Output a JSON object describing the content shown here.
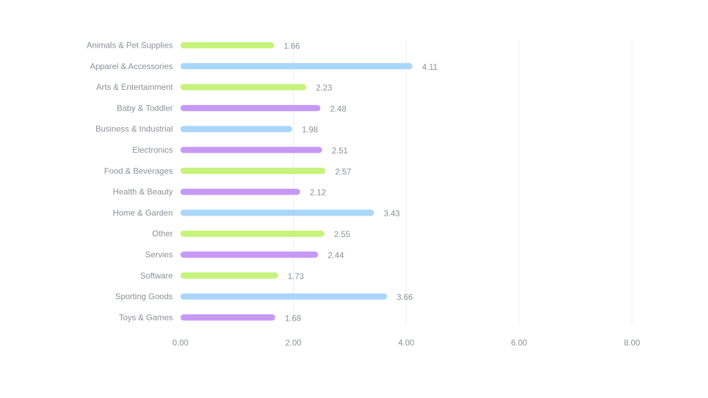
{
  "chart_data": {
    "type": "bar",
    "orientation": "horizontal",
    "title": "",
    "xlabel": "",
    "ylabel": "",
    "xlim": [
      0,
      8
    ],
    "grid": true,
    "legend": "none",
    "x_ticks": [
      "0.00",
      "2.00",
      "4.00",
      "6.00",
      "8.00"
    ],
    "x_tick_values": [
      0,
      2,
      4,
      6,
      8
    ],
    "colors": {
      "green": "#c6f37a",
      "blue": "#a9d6fb",
      "purple": "#c799f7"
    },
    "categories": [
      "Animals & Pet Supplies",
      "Apparel & Accessories",
      "Arts & Entertainment",
      "Baby & Toddler",
      "Business & Industrial",
      "Electronics",
      "Food & Beverages",
      "Health & Beauty",
      "Home & Garden",
      "Other",
      "Servies",
      "Software",
      "Sporting Goods",
      "Toys & Games"
    ],
    "values": [
      1.66,
      4.11,
      2.23,
      2.48,
      1.98,
      2.51,
      2.57,
      2.12,
      3.43,
      2.55,
      2.44,
      1.73,
      3.66,
      1.68
    ],
    "value_labels": [
      "1.66",
      "4.11",
      "2.23",
      "2.48",
      "1.98",
      "2.51",
      "2.57",
      "2.12",
      "3.43",
      "2.55",
      "2.44",
      "1.73",
      "3.66",
      "1.68"
    ],
    "bar_colors": [
      "green",
      "blue",
      "green",
      "purple",
      "blue",
      "purple",
      "green",
      "purple",
      "blue",
      "green",
      "purple",
      "green",
      "blue",
      "purple"
    ]
  }
}
